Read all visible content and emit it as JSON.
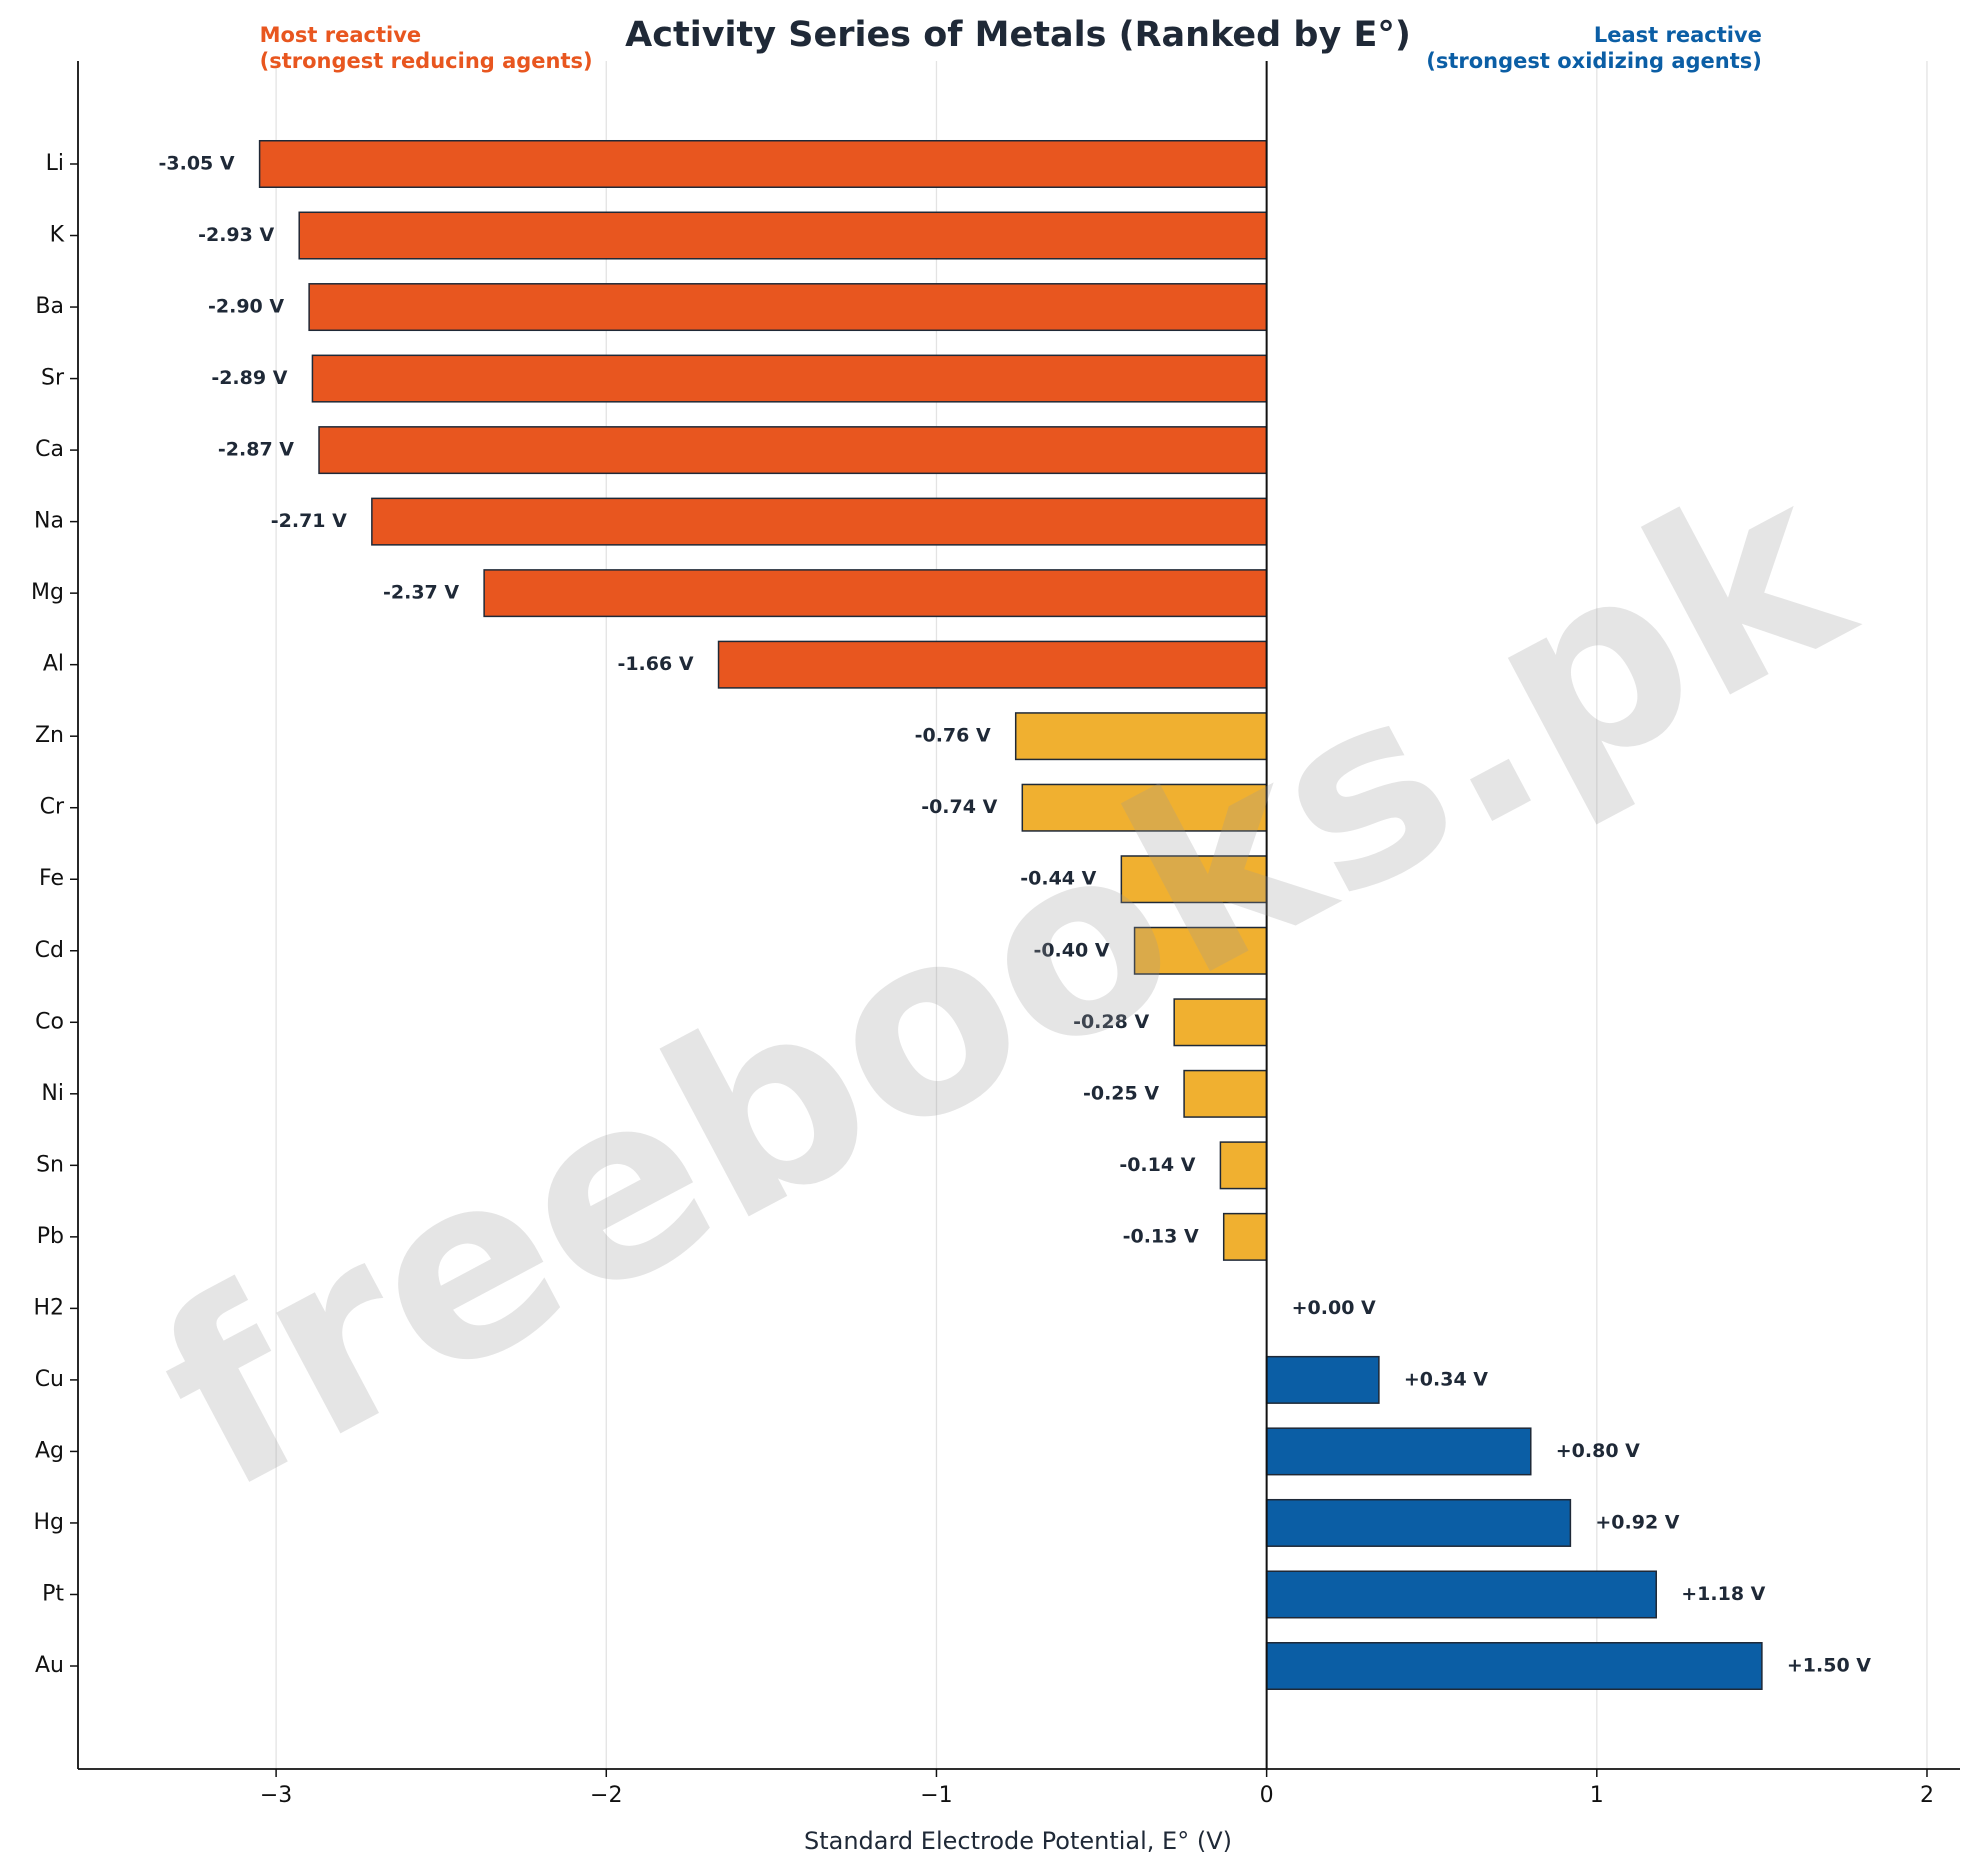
{
  "chart_data": {
    "type": "barh",
    "title": "Activity Series of Metals (Ranked by E°)",
    "xlabel": "Standard Electrode Potential, E° (V)",
    "annotations": {
      "left": [
        "Most reactive",
        "(strongest reducing agents)"
      ],
      "right": [
        "Least reactive",
        "(strongest oxidizing agents)"
      ]
    },
    "watermark": "freebooks.pk",
    "categories": [
      "Li",
      "K",
      "Ba",
      "Sr",
      "Ca",
      "Na",
      "Mg",
      "Al",
      "Zn",
      "Cr",
      "Fe",
      "Cd",
      "Co",
      "Ni",
      "Sn",
      "Pb",
      "H2",
      "Cu",
      "Ag",
      "Hg",
      "Pt",
      "Au"
    ],
    "values": [
      -3.05,
      -2.93,
      -2.9,
      -2.89,
      -2.87,
      -2.71,
      -2.37,
      -1.66,
      -0.76,
      -0.74,
      -0.44,
      -0.4,
      -0.28,
      -0.25,
      -0.14,
      -0.13,
      0.0,
      0.34,
      0.8,
      0.92,
      1.18,
      1.5
    ],
    "value_labels": [
      "-3.05 V",
      "-2.93 V",
      "-2.90 V",
      "-2.89 V",
      "-2.87 V",
      "-2.71 V",
      "-2.37 V",
      "-1.66 V",
      "-0.76 V",
      "-0.74 V",
      "-0.44 V",
      "-0.40 V",
      "-0.28 V",
      "-0.25 V",
      "-0.14 V",
      "-0.13 V",
      "+0.00 V",
      "+0.34 V",
      "+0.80 V",
      "+0.92 V",
      "+1.18 V",
      "+1.50 V"
    ],
    "colors": [
      "#e8561f",
      "#e8561f",
      "#e8561f",
      "#e8561f",
      "#e8561f",
      "#e8561f",
      "#e8561f",
      "#e8561f",
      "#f0b030",
      "#f0b030",
      "#f0b030",
      "#f0b030",
      "#f0b030",
      "#f0b030",
      "#f0b030",
      "#f0b030",
      "#9e9e9e",
      "#0b5ea5",
      "#0b5ea5",
      "#0b5ea5",
      "#0b5ea5",
      "#0b5ea5"
    ],
    "xlim": [
      -3.6,
      2.1
    ],
    "xticks": [
      {
        "value": -3,
        "label": "−3"
      },
      {
        "value": -2,
        "label": "−2"
      },
      {
        "value": -1,
        "label": "−1"
      },
      0,
      1,
      2
    ],
    "grid": true
  }
}
